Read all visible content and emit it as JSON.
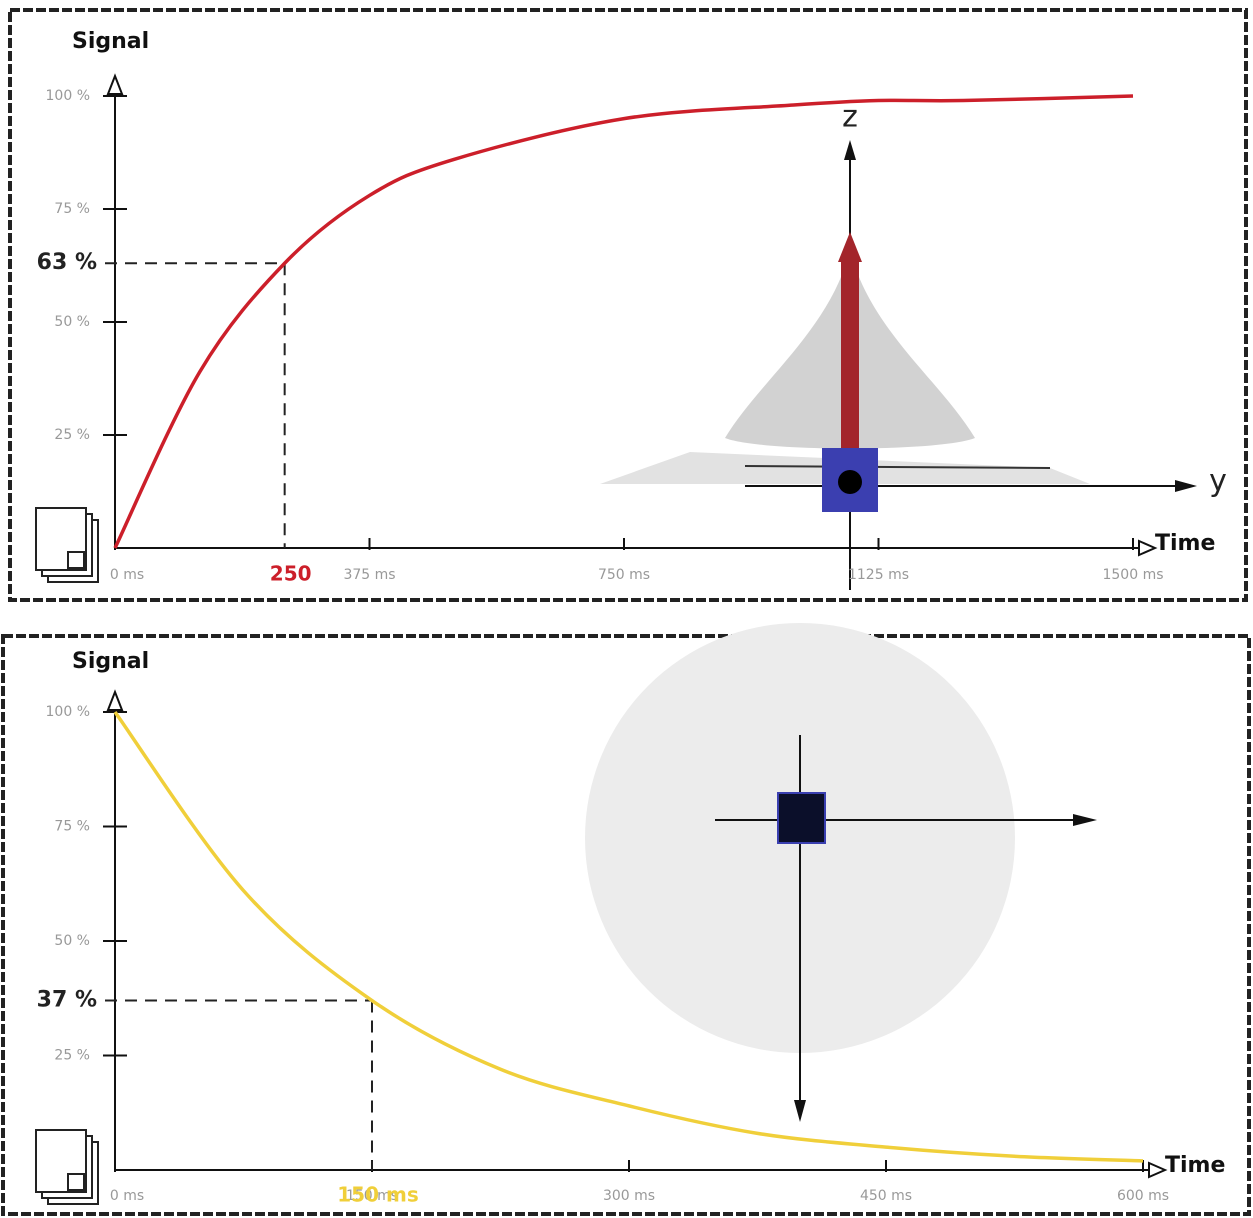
{
  "chart_data": [
    {
      "type": "line",
      "title_y": "Signal",
      "title_x": "Time",
      "color": "#cc1f2a",
      "x": [
        0,
        125,
        250,
        375,
        500,
        750,
        1000,
        1125,
        1250,
        1500
      ],
      "values": [
        0,
        39,
        63,
        78,
        86,
        95,
        98,
        99,
        99,
        100
      ],
      "xlim": [
        0,
        1500
      ],
      "ylim": [
        0,
        100
      ],
      "xticks": [
        {
          "value": 0,
          "label": "0 ms"
        },
        {
          "value": 375,
          "label": "375 ms"
        },
        {
          "value": 750,
          "label": "750 ms"
        },
        {
          "value": 1125,
          "label": "1125 ms"
        },
        {
          "value": 1500,
          "label": "1500 ms"
        }
      ],
      "yticks": [
        {
          "value": 25,
          "label": "25 %"
        },
        {
          "value": 50,
          "label": "50 %"
        },
        {
          "value": 75,
          "label": "75 %"
        },
        {
          "value": 100,
          "label": "100 %"
        }
      ],
      "marker": {
        "x": {
          "value": 250,
          "label": "250"
        },
        "y": {
          "value": 63,
          "label": "63 %"
        }
      },
      "inset_labels": [
        "z",
        "y"
      ]
    },
    {
      "type": "line",
      "title_y": "Signal",
      "title_x": "Time",
      "color": "#f0cf3a",
      "x": [
        0,
        75,
        150,
        225,
        300,
        375,
        450,
        525,
        600
      ],
      "values": [
        100,
        61,
        37,
        22,
        14,
        8,
        5,
        3,
        2
      ],
      "xlim": [
        0,
        600
      ],
      "ylim": [
        0,
        100
      ],
      "xticks": [
        {
          "value": 0,
          "label": "0 ms"
        },
        {
          "value": 150,
          "label": "150 ms"
        },
        {
          "value": 300,
          "label": "300 ms"
        },
        {
          "value": 450,
          "label": "450 ms"
        },
        {
          "value": 600,
          "label": "600 ms"
        }
      ],
      "yticks": [
        {
          "value": 25,
          "label": "25 %"
        },
        {
          "value": 50,
          "label": "50 %"
        },
        {
          "value": 75,
          "label": "75 %"
        },
        {
          "value": 100,
          "label": "100 %"
        }
      ],
      "marker": {
        "x": {
          "value": 150,
          "label": "150 ms"
        },
        "y": {
          "value": 37,
          "label": "37 %"
        }
      }
    }
  ]
}
